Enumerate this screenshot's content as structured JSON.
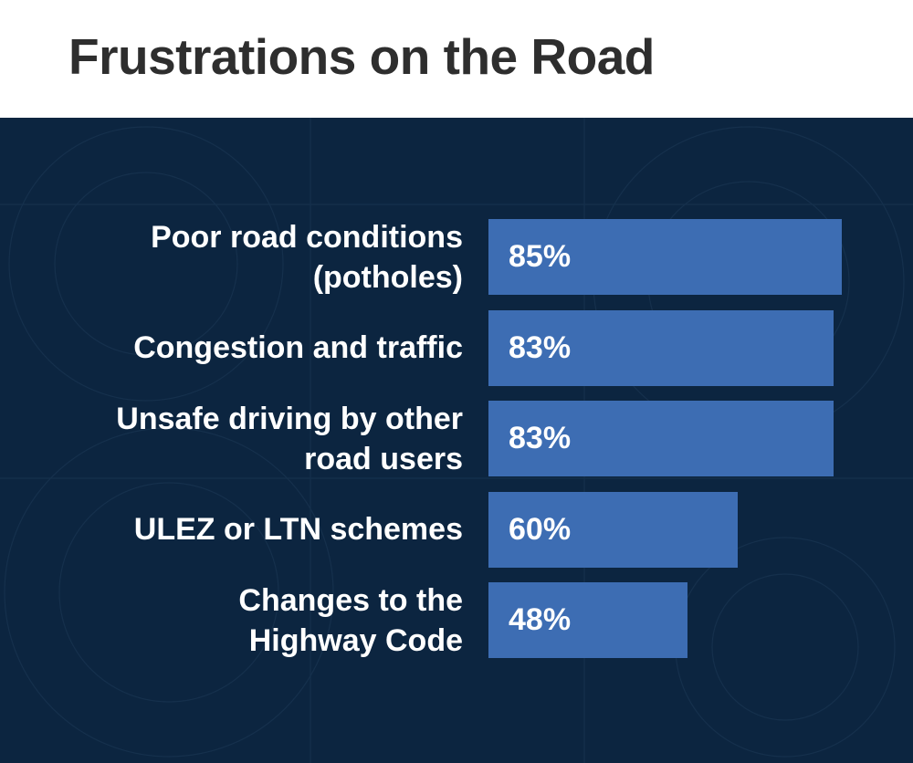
{
  "chart_data": {
    "type": "bar",
    "orientation": "horizontal",
    "title": "Frustrations on the Road",
    "categories": [
      "Poor road conditions\n(potholes)",
      "Congestion and traffic",
      "Unsafe driving by other\nroad users",
      "ULEZ or LTN schemes",
      "Changes to the\nHighway Code"
    ],
    "values": [
      85,
      83,
      83,
      60,
      48
    ],
    "value_labels": [
      "85%",
      "83%",
      "83%",
      "60%",
      "48%"
    ],
    "xlabel": "",
    "ylabel": "",
    "xlim": [
      0,
      100
    ],
    "grid": false,
    "colors": {
      "bar": "#3d6db3",
      "background": "#0c2540",
      "title": "#2e2e2e"
    }
  }
}
